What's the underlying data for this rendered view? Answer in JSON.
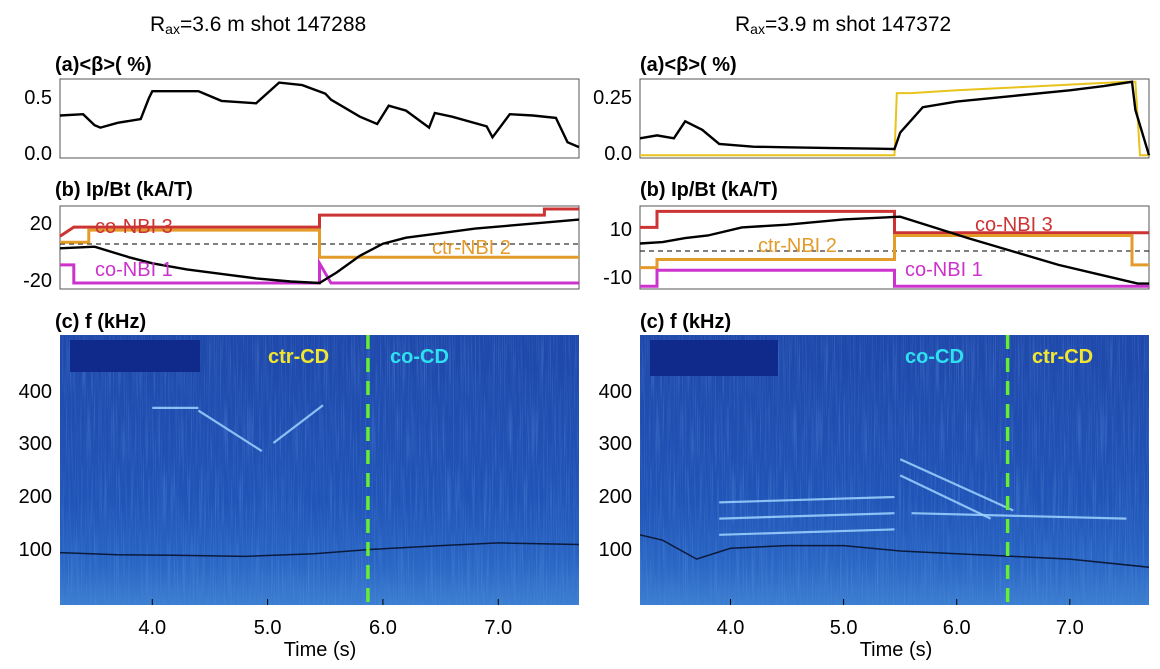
{
  "titles": {
    "left": {
      "prefix": "R",
      "sub": "ax",
      "rest": "=3.6 m shot 147288"
    },
    "right": {
      "prefix": "R",
      "sub": "ax",
      "rest": "=3.9 m shot 147372"
    }
  },
  "colors": {
    "beta": "#000000",
    "beta_diag": "#e8c31c",
    "co_nbi_3": "#cc3333",
    "ctr_nbi_2": "#e39b2a",
    "co_nbi_1": "#cc33cc",
    "ctr_cd": "#f2e630",
    "co_cd": "#2fe0f0",
    "boundary": "#66ee33",
    "spec_bg": "#1d4fb0"
  },
  "chart_data": [
    {
      "id": "left",
      "type": "line",
      "xlabel": "Time (s)",
      "xlim": [
        3.2,
        7.7
      ],
      "xticks": [
        "4.0",
        "5.0",
        "6.0",
        "7.0"
      ],
      "panels": [
        {
          "label": "(a)<β>( %)",
          "ylim": [
            -0.05,
            0.6
          ],
          "yticks": [
            "0.5",
            "0.0"
          ],
          "series": [
            {
              "name": "",
              "x": [
                3.2,
                3.4,
                3.5,
                3.55,
                3.7,
                3.9,
                3.97,
                4.0,
                4.2,
                4.4,
                4.45,
                4.6,
                4.9,
                5.1,
                5.3,
                5.5,
                5.55,
                5.8,
                5.95,
                6.05,
                6.2,
                6.4,
                6.45,
                6.6,
                6.9,
                6.95,
                7.1,
                7.3,
                7.5,
                7.6,
                7.7
              ],
              "y": [
                0.3,
                0.31,
                0.22,
                0.2,
                0.24,
                0.27,
                0.44,
                0.5,
                0.5,
                0.5,
                0.48,
                0.42,
                0.4,
                0.57,
                0.55,
                0.48,
                0.43,
                0.29,
                0.23,
                0.38,
                0.34,
                0.2,
                0.32,
                0.29,
                0.21,
                0.12,
                0.31,
                0.3,
                0.28,
                0.08,
                0.04
              ]
            }
          ]
        },
        {
          "label": "(b) Ip/Bt (kA/T)",
          "ylim": [
            -25,
            30
          ],
          "yticks": [
            "20",
            "-20"
          ],
          "series": [
            {
              "name": "",
              "x": [
                3.2,
                3.5,
                3.8,
                4.0,
                4.3,
                4.6,
                4.9,
                5.2,
                5.45,
                5.6,
                5.8,
                6.0,
                6.2,
                6.5,
                6.8,
                7.1,
                7.4,
                7.7
              ],
              "y": [
                2,
                3,
                -4,
                -8,
                -12,
                -15,
                -18,
                -20,
                -21,
                -14,
                -3,
                5,
                9,
                12,
                15,
                17,
                19,
                21
              ]
            }
          ],
          "beams": [
            {
              "name": "co-NBI 3",
              "steps": [
                [
                  3.2,
                  10
                ],
                [
                  3.32,
                  16
                ],
                [
                  5.45,
                  16
                ],
                [
                  5.45,
                  24
                ],
                [
                  7.4,
                  24
                ],
                [
                  7.4,
                  28
                ],
                [
                  7.7,
                  28
                ]
              ]
            },
            {
              "name": "ctr-NBI 2",
              "steps": [
                [
                  3.2,
                  6
                ],
                [
                  3.45,
                  6
                ],
                [
                  3.45,
                  14
                ],
                [
                  5.45,
                  14
                ],
                [
                  5.45,
                  -4
                ],
                [
                  7.7,
                  -4
                ]
              ]
            },
            {
              "name": "co-NBI 1",
              "steps": [
                [
                  3.2,
                  -9
                ],
                [
                  3.32,
                  -9
                ],
                [
                  3.32,
                  -21
                ],
                [
                  5.45,
                  -21
                ],
                [
                  5.45,
                  -8
                ],
                [
                  5.55,
                  -21
                ],
                [
                  7.7,
                  -21
                ]
              ]
            }
          ]
        },
        {
          "label": "(c) f (kHz)",
          "type": "heatmap",
          "ylim": [
            0,
            500
          ],
          "yticks": [
            "400",
            "300",
            "200",
            "100"
          ],
          "annotations": [
            {
              "text": "ctr-CD"
            },
            {
              "text": "co-CD"
            }
          ],
          "boundary_x": 5.87,
          "modes": [
            {
              "x": [
                4.0,
                4.4
              ],
              "y": [
                365,
                365
              ]
            },
            {
              "x": [
                4.4,
                4.95
              ],
              "y": [
                360,
                285
              ]
            },
            {
              "x": [
                5.05,
                5.48
              ],
              "y": [
                300,
                370
              ]
            }
          ],
          "trace": {
            "x": [
              3.2,
              3.7,
              4.2,
              4.8,
              5.4,
              5.9,
              6.5,
              7.0,
              7.7
            ],
            "y": [
              97,
              93,
              92,
              90,
              95,
              103,
              110,
              115,
              112
            ]
          }
        }
      ]
    },
    {
      "id": "right",
      "type": "line",
      "xlabel": "Time (s)",
      "xlim": [
        3.2,
        7.7
      ],
      "xticks": [
        "4.0",
        "5.0",
        "6.0",
        "7.0"
      ],
      "panels": [
        {
          "label": "(a)<β>( %)",
          "ylim": [
            -0.01,
            0.27
          ],
          "yticks": [
            "0.25",
            "0.0"
          ],
          "series": [
            {
              "name": "",
              "x": [
                3.2,
                3.35,
                3.5,
                3.6,
                3.75,
                3.9,
                4.2,
                4.5,
                4.9,
                5.3,
                5.45,
                5.5,
                5.7,
                6.0,
                6.5,
                7.0,
                7.3,
                7.55,
                7.58,
                7.7
              ],
              "y": [
                0.06,
                0.07,
                0.06,
                0.12,
                0.09,
                0.04,
                0.03,
                0.028,
                0.025,
                0.023,
                0.022,
                0.08,
                0.17,
                0.19,
                0.21,
                0.23,
                0.245,
                0.26,
                0.16,
                0.0
              ]
            },
            {
              "name": "",
              "x": [
                3.2,
                5.45,
                5.47,
                5.6,
                6.0,
                6.5,
                7.0,
                7.5,
                7.58,
                7.62,
                7.7
              ],
              "y": [
                0.0,
                0.0,
                0.22,
                0.22,
                0.23,
                0.24,
                0.25,
                0.26,
                0.26,
                0.0,
                0.0
              ]
            }
          ]
        },
        {
          "label": "(b) Ip/Bt (kA/T)",
          "ylim": [
            -14,
            17
          ],
          "yticks": [
            "10",
            "-10"
          ],
          "series": [
            {
              "name": "",
              "x": [
                3.2,
                3.4,
                3.6,
                3.8,
                4.1,
                4.5,
                5.0,
                5.5,
                5.8,
                6.1,
                6.5,
                6.9,
                7.3,
                7.6,
                7.7
              ],
              "y": [
                3,
                3.5,
                5,
                6,
                9,
                10,
                12,
                13,
                9,
                5,
                0,
                -5,
                -9,
                -12,
                -12
              ]
            }
          ],
          "beams": [
            {
              "name": "co-NBI 3",
              "steps": [
                [
                  3.2,
                  9
                ],
                [
                  3.35,
                  9
                ],
                [
                  3.35,
                  15
                ],
                [
                  5.45,
                  15
                ],
                [
                  5.45,
                  7
                ],
                [
                  7.7,
                  7
                ]
              ]
            },
            {
              "name": "ctr-NBI 2",
              "steps": [
                [
                  3.2,
                  -6
                ],
                [
                  3.35,
                  -6
                ],
                [
                  3.35,
                  -3
                ],
                [
                  5.45,
                  -3
                ],
                [
                  5.45,
                  6
                ],
                [
                  7.55,
                  6
                ],
                [
                  7.55,
                  -5
                ],
                [
                  7.7,
                  -5
                ]
              ]
            },
            {
              "name": "co-NBI 1",
              "steps": [
                [
                  3.2,
                  -13
                ],
                [
                  3.35,
                  -13
                ],
                [
                  3.35,
                  -7
                ],
                [
                  5.45,
                  -7
                ],
                [
                  5.45,
                  -13
                ],
                [
                  7.7,
                  -13
                ]
              ]
            }
          ]
        },
        {
          "label": "(c) f (kHz)",
          "type": "heatmap",
          "ylim": [
            0,
            500
          ],
          "yticks": [
            "400",
            "300",
            "200",
            "100"
          ],
          "annotations": [
            {
              "text": "co-CD"
            },
            {
              "text": "ctr-CD"
            }
          ],
          "boundary_x": 6.45,
          "modes": [
            {
              "x": [
                3.9,
                5.45
              ],
              "y": [
                190,
                200
              ]
            },
            {
              "x": [
                3.9,
                5.45
              ],
              "y": [
                160,
                170
              ]
            },
            {
              "x": [
                3.9,
                5.45
              ],
              "y": [
                130,
                140
              ]
            },
            {
              "x": [
                5.5,
                6.3
              ],
              "y": [
                240,
                160
              ]
            },
            {
              "x": [
                5.5,
                6.5
              ],
              "y": [
                270,
                175
              ]
            },
            {
              "x": [
                5.6,
                7.5
              ],
              "y": [
                170,
                160
              ]
            }
          ],
          "trace": {
            "x": [
              3.2,
              3.4,
              3.7,
              4.0,
              4.5,
              5.0,
              5.5,
              6.0,
              6.5,
              7.0,
              7.7
            ],
            "y": [
              130,
              120,
              85,
              105,
              110,
              110,
              100,
              95,
              90,
              85,
              70
            ]
          }
        }
      ]
    }
  ]
}
